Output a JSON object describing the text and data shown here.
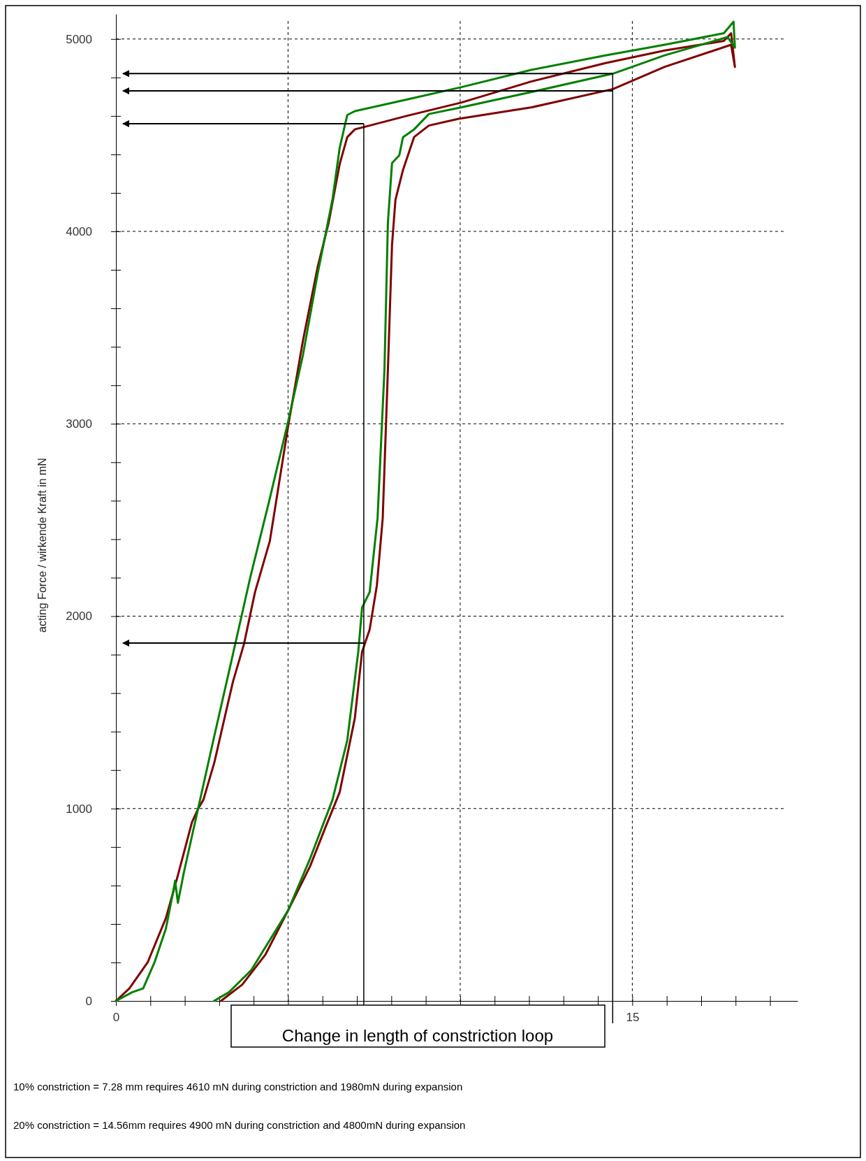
{
  "chart_data": {
    "type": "line",
    "xlabel": "Change in length of constriction loop",
    "ylabel": "acting Force / wirkende Kraft in mN",
    "xlim": [
      0,
      19.8
    ],
    "ylim": [
      0,
      5130
    ],
    "xticks": [
      0,
      {
        "value": 1,
        "label": null
      },
      {
        "value": 2,
        "label": null
      },
      {
        "value": 3,
        "label": null
      },
      {
        "value": 4,
        "label": null
      },
      {
        "value": 5,
        "label": null
      },
      {
        "value": 6,
        "label": null
      },
      {
        "value": 7,
        "label": null
      },
      {
        "value": 8,
        "label": null
      },
      {
        "value": 9,
        "label": null
      },
      {
        "value": 10,
        "label": null
      },
      {
        "value": 11,
        "label": null
      },
      {
        "value": 12,
        "label": null
      },
      {
        "value": 13,
        "label": null
      },
      {
        "value": 14,
        "label": null
      },
      15,
      {
        "value": 16,
        "label": null
      },
      {
        "value": 17,
        "label": null
      },
      {
        "value": 18,
        "label": null
      },
      {
        "value": 19,
        "label": null
      }
    ],
    "yticks": [
      0,
      {
        "value": 200,
        "label": null
      },
      {
        "value": 400,
        "label": null
      },
      {
        "value": 600,
        "label": null
      },
      {
        "value": 800,
        "label": null
      },
      1000,
      {
        "value": 1200,
        "label": null
      },
      {
        "value": 1400,
        "label": null
      },
      {
        "value": 1600,
        "label": null
      },
      {
        "value": 1800,
        "label": null
      },
      2000,
      {
        "value": 2200,
        "label": null
      },
      {
        "value": 2400,
        "label": null
      },
      {
        "value": 2600,
        "label": null
      },
      {
        "value": 2800,
        "label": null
      },
      3000,
      {
        "value": 3200,
        "label": null
      },
      {
        "value": 3400,
        "label": null
      },
      {
        "value": 3600,
        "label": null
      },
      {
        "value": 3800,
        "label": null
      },
      4000,
      {
        "value": 4200,
        "label": null
      },
      {
        "value": 4400,
        "label": null
      },
      {
        "value": 4600,
        "label": null
      },
      {
        "value": 4800,
        "label": null
      },
      5000
    ],
    "grid": true,
    "line_style": "solid",
    "marker": "none",
    "series": [
      {
        "color": "#800000",
        "x": [
          0,
          0.39,
          0.92,
          1.45,
          1.78,
          2.21,
          2.39,
          2.54,
          2.86,
          3.18,
          3.4,
          3.72,
          4.04,
          4.47,
          5.0,
          5.43,
          5.86,
          6.18,
          6.5,
          6.72,
          6.94,
          7.37,
          8.44,
          10.04,
          12.08,
          14.22,
          15.94,
          17.66,
          17.87,
          17.98,
          17.87,
          15.94,
          14.44,
          12.08,
          9.95,
          9.09,
          8.66,
          8.34,
          8.12,
          8.02,
          7.9,
          7.75,
          7.58,
          7.37,
          7.15,
          6.94,
          6.5,
          6.07,
          5.64,
          5.0,
          4.34,
          3.67,
          3.05
        ],
        "values": [
          0,
          65,
          200,
          430,
          640,
          930,
          1000,
          1045,
          1240,
          1490,
          1660,
          1855,
          2125,
          2390,
          2985,
          3430,
          3815,
          4045,
          4350,
          4490,
          4530,
          4550,
          4600,
          4670,
          4780,
          4875,
          4940,
          4990,
          5030,
          4855,
          4970,
          4855,
          4740,
          4645,
          4585,
          4550,
          4490,
          4320,
          4165,
          3930,
          3280,
          2510,
          2160,
          1930,
          1815,
          1470,
          1085,
          895,
          700,
          470,
          240,
          85,
          0
        ]
      },
      {
        "color": "#008000",
        "x": [
          0,
          0.47,
          0.79,
          1.12,
          1.45,
          1.66,
          1.72,
          1.8,
          1.97,
          2.3,
          2.83,
          3.37,
          3.9,
          4.44,
          5.0,
          5.43,
          5.86,
          6.29,
          6.5,
          6.72,
          6.94,
          8.44,
          10.04,
          12.08,
          14.22,
          15.94,
          17.66,
          17.94,
          17.98,
          17.77,
          15.94,
          14.44,
          12.08,
          10.04,
          9.09,
          8.66,
          8.34,
          8.23,
          8.02,
          7.9,
          7.8,
          7.6,
          7.37,
          7.15,
          7.04,
          6.72,
          6.29,
          5.64,
          5.0,
          3.93,
          3.28,
          2.85
        ],
        "values": [
          0,
          45,
          65,
          200,
          375,
          565,
          625,
          510,
          665,
          930,
          1355,
          1780,
          2200,
          2590,
          3010,
          3355,
          3780,
          4165,
          4435,
          4605,
          4625,
          4685,
          4750,
          4840,
          4915,
          4970,
          5030,
          5090,
          4955,
          5010,
          4915,
          4820,
          4725,
          4645,
          4610,
          4530,
          4490,
          4395,
          4355,
          4045,
          3280,
          2510,
          2125,
          2045,
          1815,
          1355,
          1045,
          740,
          470,
          160,
          45,
          0
        ]
      }
    ],
    "ref_lines": [
      {
        "axis": "x",
        "value": 7.2,
        "color": "#000000"
      },
      {
        "axis": "x",
        "value": 14.43,
        "color": "#000000"
      },
      {
        "axis": "y",
        "value": 4820,
        "color": "#000000"
      },
      {
        "axis": "y",
        "value": 4730,
        "color": "#000000"
      },
      {
        "axis": "y",
        "value": 4560,
        "color": "#000000"
      },
      {
        "axis": "y",
        "value": 1860,
        "color": "#000000"
      }
    ],
    "annotations": [
      "10% constriction = 7.28 mm requires 4610 mN during constriction and 1980mN during expansion",
      "20% constriction = 14.56mm requires 4900 mN during constriction and 4800mN during expansion"
    ]
  }
}
